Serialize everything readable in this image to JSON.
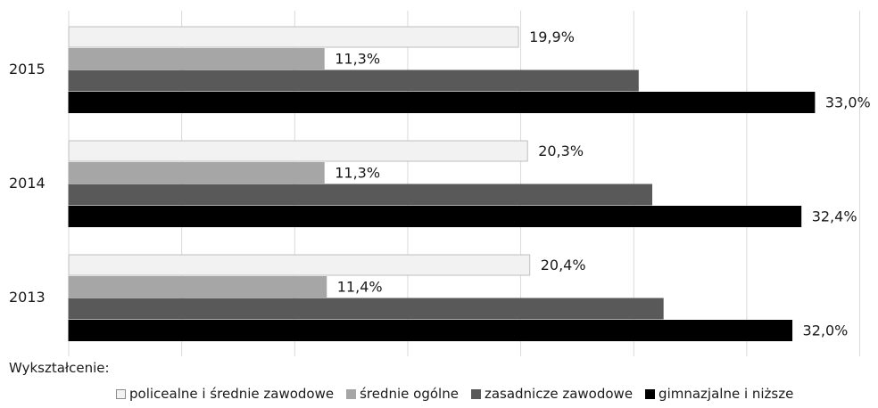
{
  "chart_data": {
    "type": "bar",
    "orientation": "horizontal",
    "categories": [
      "2015",
      "2014",
      "2013"
    ],
    "series": [
      {
        "name": "policealne i średnie zawodowe",
        "color": "#f2f2f2",
        "values": [
          19.9,
          20.3,
          20.4
        ],
        "labels": [
          "19,9%",
          "20,3%",
          "20,4%"
        ]
      },
      {
        "name": "średnie ogólne",
        "color": "#a6a6a6",
        "values": [
          11.3,
          11.3,
          11.4
        ],
        "labels": [
          "11,3%",
          "11,3%",
          "11,4%"
        ]
      },
      {
        "name": "zasadnicze zawodowe",
        "color": "#595959",
        "values": [
          25.2,
          25.8,
          26.3
        ],
        "labels": []
      },
      {
        "name": "gimnazjalne i niższe",
        "color": "#000000",
        "values": [
          33.0,
          32.4,
          32.0
        ],
        "labels": [
          "33,0%",
          "32,4%",
          "32,0%"
        ]
      }
    ],
    "xlim": [
      0,
      35
    ],
    "grid": true,
    "legend_title": "Wykształcenie:",
    "legend_position": "bottom"
  }
}
